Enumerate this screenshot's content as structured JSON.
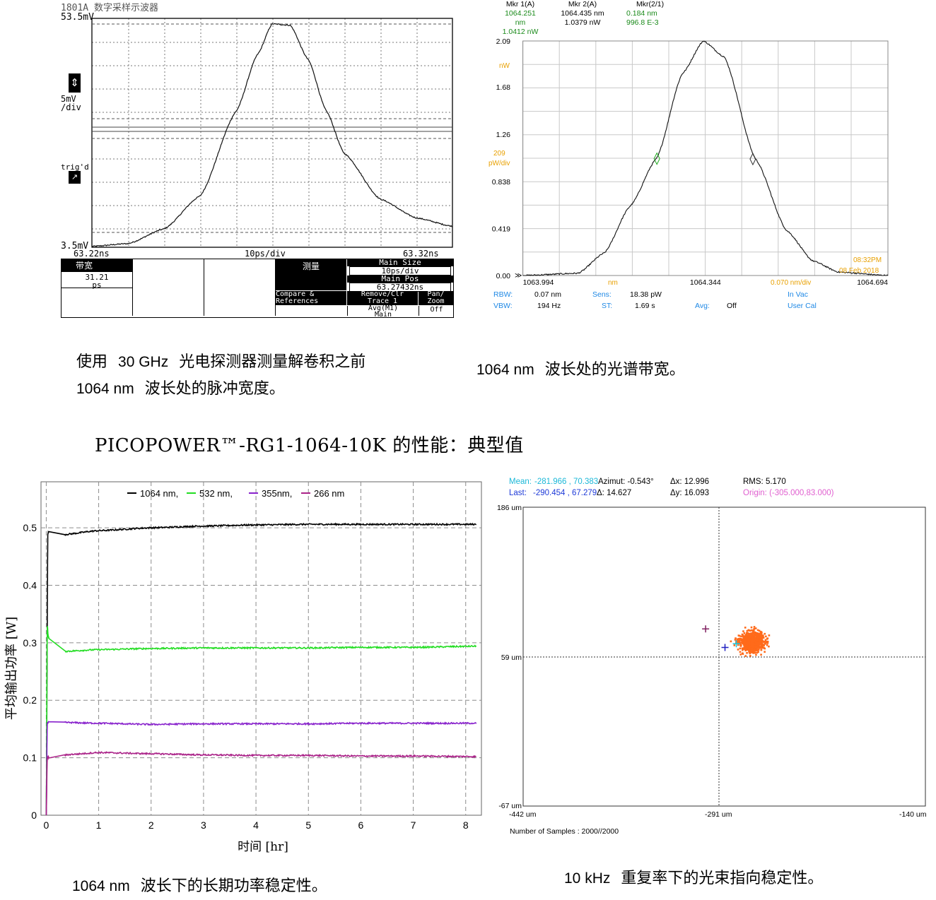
{
  "scope": {
    "header": "1801A 数字采样示波器",
    "y_top": "53.5mV",
    "y_bottom": "3.5mV",
    "scale_label_1": "5mV",
    "scale_label_2": "/div",
    "trig_label": "trig'd",
    "x_left": "63.22ns",
    "x_mid": "10ps/div",
    "x_right": "63.32ns",
    "table": {
      "bw_label": "带宽",
      "bw_value": "31.21",
      "bw_unit": "ps",
      "measure_label": "测量",
      "main_size_label": "Main Size",
      "main_size_value": "10ps/div",
      "main_pos_label": "Main Pos",
      "main_pos_value": "63.27432ns",
      "compare_1": "Compare &",
      "compare_2": "References",
      "remove_1": "Remove/Clr",
      "remove_2": "Trace 1",
      "pan_1": "Pan/",
      "pan_2": "Zoom",
      "avg_1": "Avg(M1)",
      "avg_2": "Main",
      "off": "Off"
    }
  },
  "osa": {
    "mkr1_label": "Mkr 1(A)",
    "mkr1_wl": "1064.251 nm",
    "mkr1_pw": "1.0412 nW",
    "mkr2_label": "Mkr 2(A)",
    "mkr2_wl": "1064.435 nm",
    "mkr2_pw": "1.0379 nW",
    "mkr21_label": "Mkr(2/1)",
    "mkr21_wl": "0.184 nm",
    "mkr21_pw": "996.8 E-3",
    "y_unit": "nW",
    "y_div_1": "209",
    "y_div_2": "pW/div",
    "x_unit": "nm",
    "x_div": "0.070 nm/div",
    "time": "08:32PM",
    "date": "08 Feb 2018",
    "rbw_label": "RBW:",
    "rbw_value": "0.07 nm",
    "vbw_label": "VBW:",
    "vbw_value": "194 Hz",
    "sens_label": "Sens:",
    "sens_value": "18.38 pW",
    "st_label": "ST:",
    "st_value": "1.69 s",
    "avg_label": "Avg:",
    "avg_value": "Off",
    "vac": "In Vac",
    "cal": "User Cal"
  },
  "captions": {
    "top_left_1_a": "使用",
    "top_left_1_b": "30 GHz",
    "top_left_1_c": "光电探测器测量解卷积之前",
    "top_left_2_a": "1064 nm",
    "top_left_2_b": "波长处的脉冲宽度。",
    "top_right_a": "1064 nm",
    "top_right_b": "波长处的光谱带宽。",
    "section_title": "PICOPOWER™-RG1-1064-10K 的性能：典型值",
    "bottom_left_a": "1064 nm",
    "bottom_left_b": "波长下的长期功率稳定性。",
    "bottom_right_a": "10 kHz",
    "bottom_right_b": "重复率下的光束指向稳定性。"
  },
  "pointing": {
    "mean_label": "Mean:",
    "mean_value": "-281.966 , 70.383",
    "azimut": "Azimut: -0.543°",
    "dx": "Δx: 12.996",
    "rms": "RMS: 5.170",
    "last_label": "Last:",
    "last_value": "-290.454 , 67.279",
    "delta": "Δ: 14.627",
    "dy": "Δy: 16.093",
    "origin": "Origin: (-305.000,83.000)",
    "y_top": "186 um",
    "y_mid": "59 um",
    "y_bottom": "-67 um",
    "x_left": "-442 um",
    "x_mid": "-291 um",
    "x_right": "-140 um",
    "samples": "Number of Samples : 2000//2000"
  },
  "chart_data": [
    {
      "type": "line",
      "title": "",
      "xlabel": "",
      "ylabel": "",
      "x_range_ns": [
        63.22,
        63.32
      ],
      "ylim_mV": [
        3.5,
        53.5
      ],
      "x": [
        63.22,
        63.23,
        63.24,
        63.25,
        63.26,
        63.266,
        63.27,
        63.275,
        63.28,
        63.285,
        63.29,
        63.3,
        63.31,
        63.32
      ],
      "values": [
        3.7,
        4.3,
        7.5,
        14.7,
        33.2,
        45.7,
        52.3,
        52.0,
        44.5,
        33.3,
        24.0,
        14.0,
        9.9,
        8.1
      ],
      "color": "#000000"
    },
    {
      "type": "line",
      "title": "",
      "xlabel": "nm",
      "ylabel": "nW",
      "xlim": [
        1063.994,
        1064.694
      ],
      "ylim": [
        0,
        2.09
      ],
      "yticks": [
        0.0,
        0.419,
        0.838,
        1.26,
        1.68,
        2.09
      ],
      "xticks": [
        1063.994,
        1064.344,
        1064.694
      ],
      "x": [
        1063.994,
        1064.1,
        1064.15,
        1064.2,
        1064.25,
        1064.3,
        1064.34,
        1064.38,
        1064.44,
        1064.5,
        1064.55,
        1064.6,
        1064.694
      ],
      "values": [
        0.0,
        0.02,
        0.2,
        0.62,
        1.04,
        1.8,
        2.09,
        1.95,
        1.04,
        0.4,
        0.13,
        0.03,
        0.0
      ],
      "markers": [
        {
          "name": "Mkr 1",
          "x": 1064.251,
          "y": 1.0412
        },
        {
          "name": "Mkr 2",
          "x": 1064.435,
          "y": 1.0379
        }
      ]
    },
    {
      "type": "line",
      "title": "",
      "xlabel": "时间 [hr]",
      "ylabel": "平均输出功率 [W]",
      "xlim": [
        -0.1,
        8.3
      ],
      "ylim": [
        0,
        0.58
      ],
      "xticks": [
        0,
        1,
        2,
        3,
        4,
        5,
        6,
        7,
        8
      ],
      "yticks": [
        0,
        0.1,
        0.2,
        0.3,
        0.4,
        0.5
      ],
      "series": [
        {
          "name": "1064 nm,",
          "color": "#000000",
          "x": [
            0.0,
            0.03,
            0.06,
            0.3,
            1,
            2,
            3,
            4,
            5,
            6,
            7,
            8.2
          ],
          "values": [
            0.0,
            0.49,
            0.495,
            0.488,
            0.495,
            0.5,
            0.503,
            0.505,
            0.506,
            0.506,
            0.506,
            0.506
          ]
        },
        {
          "name": "532 nm,",
          "color": "#22dd22",
          "x": [
            0.0,
            0.02,
            0.04,
            0.15,
            0.3,
            1,
            2,
            3,
            4,
            5,
            6,
            7,
            8.2
          ],
          "values": [
            0.0,
            0.33,
            0.31,
            0.287,
            0.285,
            0.288,
            0.29,
            0.291,
            0.291,
            0.291,
            0.292,
            0.292,
            0.294
          ]
        },
        {
          "name": "355nm,",
          "color": "#8822cc",
          "x": [
            0.0,
            0.02,
            0.05,
            1,
            2,
            3,
            4,
            5,
            6,
            7,
            8.2
          ],
          "values": [
            0.0,
            0.16,
            0.162,
            0.16,
            0.158,
            0.159,
            0.159,
            0.159,
            0.16,
            0.16,
            0.16
          ]
        },
        {
          "name": "266 nm",
          "color": "#aa2288",
          "x": [
            0.0,
            0.02,
            0.1,
            0.5,
            1,
            2,
            3,
            4,
            5,
            6,
            7,
            8.2
          ],
          "values": [
            0.0,
            0.1,
            0.101,
            0.106,
            0.109,
            0.107,
            0.105,
            0.104,
            0.104,
            0.103,
            0.103,
            0.102
          ]
        }
      ]
    },
    {
      "type": "scatter",
      "title": "",
      "xlabel": "",
      "ylabel": "",
      "xlim_um": [
        -442,
        -140
      ],
      "ylim_um": [
        -67,
        186
      ],
      "cluster_center_um": [
        -270,
        72
      ],
      "cluster_rms_um": 5.17,
      "points_count": 2000,
      "color": "#ff6a1a",
      "origin_marker": {
        "x": -305,
        "y": 83
      },
      "last_marker": {
        "x": -290.454,
        "y": 67.279
      },
      "mean_marker": {
        "x": -281.966,
        "y": 70.383
      }
    }
  ]
}
